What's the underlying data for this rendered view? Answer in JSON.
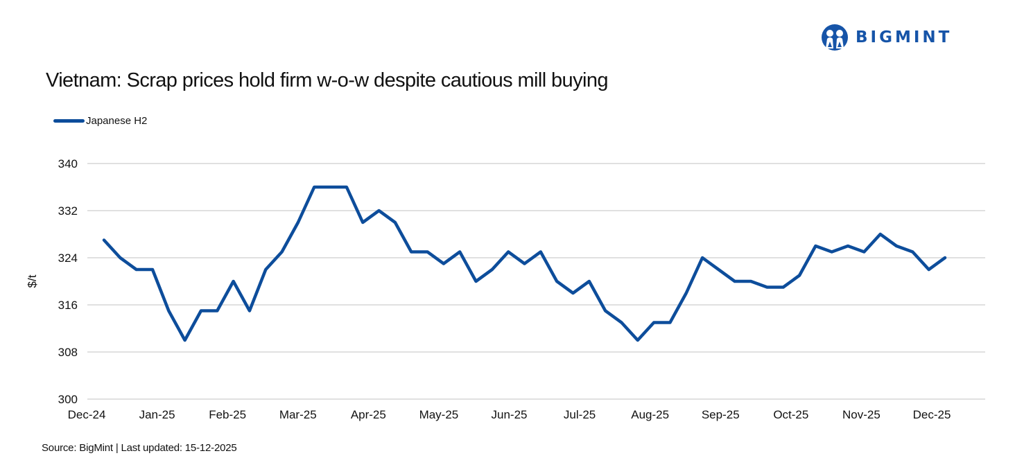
{
  "title": "Vietnam: Scrap prices hold firm w-o-w despite cautious mill buying",
  "logo": {
    "text": "BIGMINT",
    "color": "#1654a8"
  },
  "source": "Source: BigMint | Last updated: 15-12-2025",
  "chart_data": {
    "type": "line",
    "title": "Vietnam: Scrap prices hold firm w-o-w despite cautious mill buying",
    "ylabel": "$/t",
    "xlabel": "",
    "ylim": [
      300,
      340
    ],
    "yticks": [
      300,
      308,
      316,
      324,
      332,
      340
    ],
    "xtick_labels": [
      "Dec-24",
      "Jan-25",
      "Feb-25",
      "Mar-25",
      "Apr-25",
      "May-25",
      "Jun-25",
      "Jul-25",
      "Aug-25",
      "Sep-25",
      "Oct-25",
      "Nov-25",
      "Dec-25"
    ],
    "grid": "horizontal",
    "legend": "top-left",
    "series": [
      {
        "name": "Japanese H2",
        "color": "#0d4d9b",
        "values": [
          327,
          324,
          322,
          322,
          315,
          310,
          315,
          315,
          320,
          315,
          322,
          325,
          330,
          336,
          336,
          336,
          330,
          332,
          330,
          325,
          325,
          323,
          325,
          320,
          322,
          325,
          323,
          325,
          320,
          318,
          320,
          315,
          313,
          310,
          313,
          313,
          318,
          324,
          322,
          320,
          320,
          319,
          319,
          321,
          326,
          325,
          326,
          325,
          328,
          326,
          325,
          322,
          324
        ]
      }
    ]
  }
}
